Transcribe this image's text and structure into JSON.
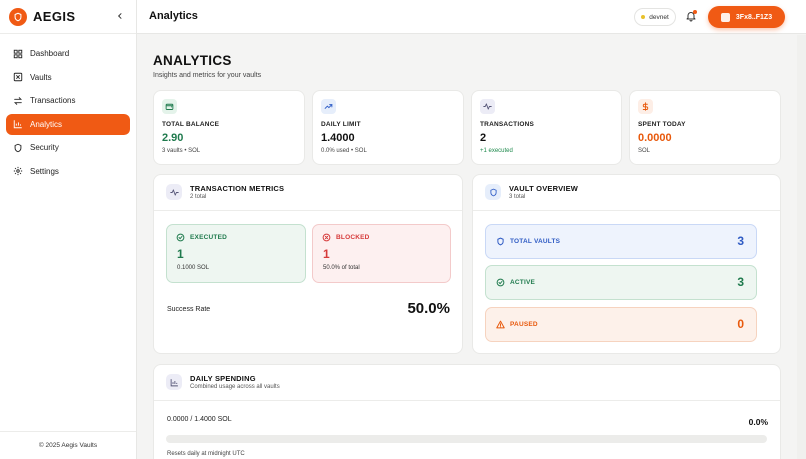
{
  "brand": {
    "name": "AEGIS"
  },
  "sidebar": {
    "items": [
      {
        "label": "Dashboard",
        "icon": "dashboard-icon"
      },
      {
        "label": "Vaults",
        "icon": "vault-icon"
      },
      {
        "label": "Transactions",
        "icon": "arrows-icon"
      },
      {
        "label": "Analytics",
        "icon": "chart-icon",
        "active": true
      },
      {
        "label": "Security",
        "icon": "shield-icon"
      },
      {
        "label": "Settings",
        "icon": "gear-icon"
      }
    ],
    "footer": "© 2025 Aegis Vaults"
  },
  "header": {
    "title": "Analytics",
    "network": "devnet",
    "wallet": "3Fx8..F1Z3"
  },
  "page": {
    "title": "ANALYTICS",
    "subtitle": "Insights and metrics for your vaults"
  },
  "stats": [
    {
      "label": "TOTAL BALANCE",
      "value": "2.90",
      "sub": "3 vaults • SOL",
      "value_color": "#1f7a4d",
      "sub_color": "#444444",
      "icon": "wallet-icon",
      "icon_bg": "#e4f3ea",
      "icon_color": "#1f7a4d"
    },
    {
      "label": "DAILY LIMIT",
      "value": "1.4000",
      "sub": "0.0% used • SOL",
      "value_color": "#111111",
      "sub_color": "#444444",
      "icon": "trending-up-icon",
      "icon_bg": "#e6eefb",
      "icon_color": "#3360c8"
    },
    {
      "label": "TRANSACTIONS",
      "value": "2",
      "sub": "+1 executed",
      "value_color": "#111111",
      "sub_color": "#1f8a4d",
      "icon": "activity-icon",
      "icon_bg": "#ececf6",
      "icon_color": "#555577"
    },
    {
      "label": "SPENT TODAY",
      "value": "0.0000",
      "sub": "SOL",
      "value_color": "#e8590c",
      "sub_color": "#444444",
      "icon": "dollar-icon",
      "icon_bg": "#fdeee6",
      "icon_color": "#e8590c"
    }
  ],
  "metrics": {
    "title": "TRANSACTION METRICS",
    "subtitle": "2 total",
    "executed": {
      "label": "EXECUTED",
      "value": "1",
      "sub": "0.1000 SOL",
      "color": "#1f7a4d"
    },
    "blocked": {
      "label": "BLOCKED",
      "value": "1",
      "sub": "50.0% of total",
      "color": "#d63a3a"
    },
    "success_label": "Success Rate",
    "success_value": "50.0%"
  },
  "overview": {
    "title": "VAULT OVERVIEW",
    "subtitle": "3 total",
    "rows": [
      {
        "label": "TOTAL VAULTS",
        "value": "3",
        "color": "#2f5bc4",
        "bg": "#eef3fd",
        "border": "#c9d8f6",
        "icon": "shield-icon"
      },
      {
        "label": "ACTIVE",
        "value": "3",
        "color": "#1f7a4d",
        "bg": "#eef6f1",
        "border": "#c4e1cf",
        "icon": "check-circle-icon"
      },
      {
        "label": "PAUSED",
        "value": "0",
        "color": "#e8590c",
        "bg": "#fdf1ea",
        "border": "#f6d3bf",
        "icon": "warning-icon"
      }
    ]
  },
  "spending": {
    "title": "DAILY SPENDING",
    "subtitle": "Combined usage across all vaults",
    "amount": "0.0000 / 1.4000 SOL",
    "percent": "0.0%",
    "progress": 0,
    "note": "Resets daily at midnight UTC"
  },
  "accent": "#f05a14"
}
